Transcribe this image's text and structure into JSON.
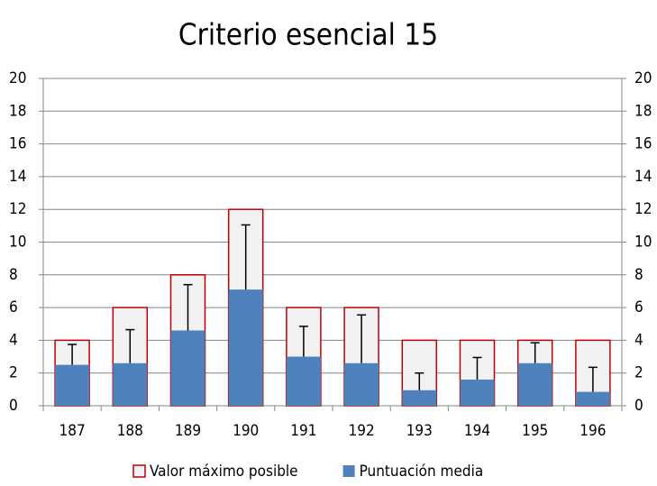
{
  "chart_data": {
    "type": "bar",
    "title": "Criterio esencial 15",
    "categories": [
      "187",
      "188",
      "189",
      "190",
      "191",
      "192",
      "193",
      "194",
      "195",
      "196"
    ],
    "series": [
      {
        "name": "Valor máximo posible",
        "color": "#c00000",
        "fill": "#f2f2f2",
        "values": [
          4,
          6,
          8,
          12,
          6,
          6,
          4,
          4,
          4,
          4
        ]
      },
      {
        "name": "Puntuación media",
        "color": "#4f81bd",
        "values": [
          2.5,
          2.6,
          4.6,
          7.1,
          3.0,
          2.6,
          0.95,
          1.6,
          2.6,
          0.85
        ],
        "errors": [
          1.25,
          2.05,
          2.8,
          3.95,
          1.85,
          2.95,
          1.05,
          1.35,
          1.25,
          1.5
        ]
      }
    ],
    "ylim": [
      0,
      20
    ],
    "yticks": [
      0,
      2,
      4,
      6,
      8,
      10,
      12,
      14,
      16,
      18,
      20
    ],
    "y2lim": [
      0,
      20
    ],
    "y2ticks": [
      0,
      2,
      4,
      6,
      8,
      10,
      12,
      14,
      16,
      18,
      20
    ],
    "grid": true,
    "legend": "bottom"
  }
}
